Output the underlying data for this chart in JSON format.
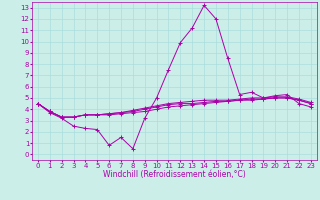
{
  "title": "",
  "xlabel": "Windchill (Refroidissement éolien,°C)",
  "background_color": "#cceee8",
  "grid_color": "#aadddd",
  "line_color": "#aa00aa",
  "x": [
    0,
    1,
    2,
    3,
    4,
    5,
    6,
    7,
    8,
    9,
    10,
    11,
    12,
    13,
    14,
    15,
    16,
    17,
    18,
    19,
    20,
    21,
    22,
    23
  ],
  "ylim": [
    -0.5,
    13.5
  ],
  "xlim": [
    -0.5,
    23.5
  ],
  "lines": [
    [
      4.5,
      3.7,
      3.2,
      2.5,
      2.3,
      2.2,
      0.8,
      1.5,
      0.5,
      3.2,
      5.0,
      7.5,
      9.9,
      11.2,
      13.2,
      12.0,
      8.5,
      5.3,
      5.5,
      5.0,
      5.2,
      5.3,
      4.5,
      4.2
    ],
    [
      4.5,
      3.8,
      3.3,
      3.3,
      3.5,
      3.5,
      3.5,
      3.6,
      3.7,
      3.8,
      4.0,
      4.2,
      4.3,
      4.4,
      4.5,
      4.6,
      4.7,
      4.8,
      4.8,
      4.9,
      5.0,
      5.0,
      4.8,
      4.5
    ],
    [
      4.5,
      3.8,
      3.3,
      3.3,
      3.5,
      3.5,
      3.6,
      3.7,
      3.8,
      4.0,
      4.2,
      4.4,
      4.5,
      4.5,
      4.6,
      4.7,
      4.7,
      4.8,
      4.9,
      4.9,
      5.0,
      5.0,
      4.8,
      4.5
    ],
    [
      4.5,
      3.8,
      3.3,
      3.3,
      3.5,
      3.5,
      3.6,
      3.7,
      3.9,
      4.1,
      4.3,
      4.5,
      4.6,
      4.7,
      4.8,
      4.8,
      4.8,
      4.9,
      5.0,
      5.0,
      5.1,
      5.1,
      4.9,
      4.6
    ]
  ],
  "yticks": [
    0,
    1,
    2,
    3,
    4,
    5,
    6,
    7,
    8,
    9,
    10,
    11,
    12,
    13
  ],
  "xticks": [
    0,
    1,
    2,
    3,
    4,
    5,
    6,
    7,
    8,
    9,
    10,
    11,
    12,
    13,
    14,
    15,
    16,
    17,
    18,
    19,
    20,
    21,
    22,
    23
  ],
  "tick_fontsize": 5,
  "xlabel_fontsize": 5.5,
  "linewidth": 0.7,
  "markersize": 2.5
}
